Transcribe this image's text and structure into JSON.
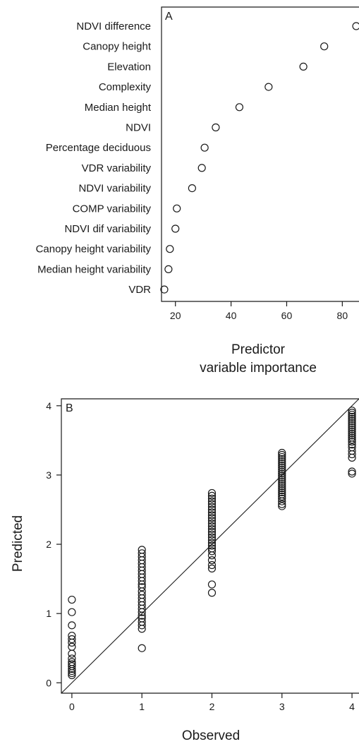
{
  "chart_data": [
    {
      "type": "scatter",
      "panel_label": "A",
      "title": "",
      "xlabel": "Predictor",
      "xlabel_line2": "variable importance",
      "ylabel": "",
      "xlim": [
        15,
        86
      ],
      "xticks": [
        20,
        40,
        60,
        80
      ],
      "grid": false,
      "categories": [
        "NDVI difference",
        "Canopy height",
        "Elevation",
        "Complexity",
        "Median height",
        "NDVI",
        "Percentage deciduous",
        "VDR variability",
        "NDVI variability",
        "COMP variability",
        "NDVI dif variability",
        "Canopy height variability",
        "Median height variability",
        "VDR"
      ],
      "values": [
        85,
        73.5,
        66,
        53.5,
        43,
        34.5,
        30.5,
        29.5,
        26,
        20.5,
        20,
        18,
        17.5,
        16
      ]
    },
    {
      "type": "scatter",
      "panel_label": "B",
      "title": "",
      "xlabel": "Observed",
      "ylabel": "Predicted",
      "xlim": [
        -0.15,
        4.1
      ],
      "ylim": [
        -0.15,
        4.1
      ],
      "xticks": [
        0,
        1,
        2,
        3,
        4
      ],
      "yticks": [
        0,
        1,
        2,
        3,
        4
      ],
      "grid": false,
      "reference_line": "1:1",
      "series": [
        {
          "x": 0,
          "y": [
            1.2,
            1.02,
            0.83,
            0.68,
            0.63,
            0.58,
            0.52,
            0.42,
            0.35,
            0.3,
            0.27,
            0.24,
            0.2,
            0.17,
            0.14,
            0.11
          ]
        },
        {
          "x": 1,
          "y": [
            1.92,
            1.87,
            1.82,
            1.77,
            1.72,
            1.67,
            1.62,
            1.57,
            1.52,
            1.47,
            1.42,
            1.38,
            1.32,
            1.27,
            1.22,
            1.17,
            1.12,
            1.07,
            1.02,
            0.97,
            0.93,
            0.88,
            0.83,
            0.78,
            0.5
          ]
        },
        {
          "x": 2,
          "y": [
            2.74,
            2.7,
            2.66,
            2.62,
            2.58,
            2.54,
            2.5,
            2.46,
            2.42,
            2.38,
            2.34,
            2.3,
            2.26,
            2.22,
            2.18,
            2.14,
            2.1,
            2.06,
            2.02,
            1.98,
            1.94,
            1.9,
            1.84,
            1.77,
            1.7,
            1.65,
            1.42,
            1.3
          ]
        },
        {
          "x": 3,
          "y": [
            3.32,
            3.29,
            3.26,
            3.23,
            3.2,
            3.17,
            3.14,
            3.11,
            3.08,
            3.05,
            3.02,
            2.99,
            2.96,
            2.93,
            2.9,
            2.87,
            2.84,
            2.81,
            2.78,
            2.75,
            2.72,
            2.69,
            2.66,
            2.62,
            2.58,
            2.55
          ]
        },
        {
          "x": 4,
          "y": [
            3.93,
            3.9,
            3.87,
            3.84,
            3.81,
            3.78,
            3.75,
            3.72,
            3.69,
            3.66,
            3.63,
            3.6,
            3.57,
            3.54,
            3.51,
            3.48,
            3.44,
            3.4,
            3.35,
            3.3,
            3.25,
            3.05,
            3.02
          ]
        }
      ]
    }
  ]
}
